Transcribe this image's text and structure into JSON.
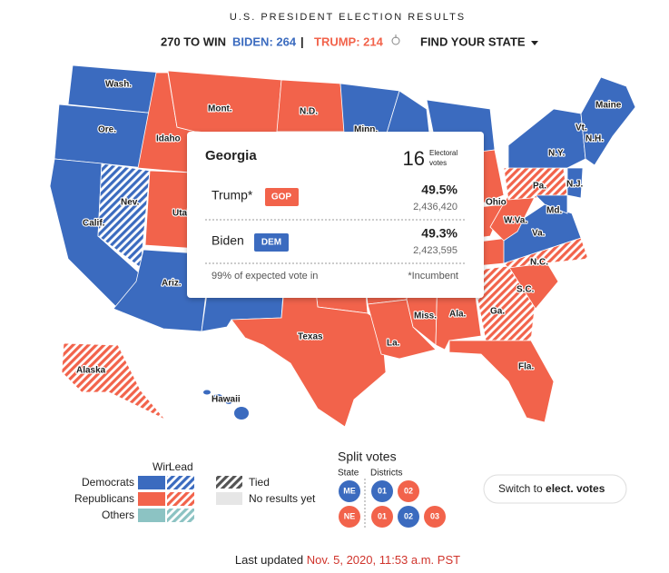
{
  "header": {
    "title": "U.S. PRESIDENT ELECTION RESULTS",
    "to_win": "270 TO WIN",
    "biden": "BIDEN: 264",
    "separator": "|",
    "trump": "TRUMP: 214",
    "find_state": "FIND YOUR STATE"
  },
  "map_labels": [
    "Wash.",
    "Ore.",
    "Calif.",
    "Nev.",
    "Idaho",
    "Mont.",
    "Utah",
    "Ariz.",
    "N.D.",
    "Minn.",
    "Texas",
    "La.",
    "Miss.",
    "Ala.",
    "Ga.",
    "Fla.",
    "S.C.",
    "N.C.",
    "Va.",
    "W.Va.",
    "Md.",
    "Pa.",
    "N.J.",
    "N.Y.",
    "Vt.",
    "N.H.",
    "Maine",
    "Ohio",
    "Alaska",
    "Hawaii"
  ],
  "tooltip": {
    "state": "Georgia",
    "electoral_votes": "16",
    "electoral_caption": [
      "Electoral",
      "votes"
    ],
    "rows": [
      {
        "name": "Trump*",
        "party": "GOP",
        "percent": "49.5%",
        "votes": "2,436,420"
      },
      {
        "name": "Biden",
        "party": "DEM",
        "percent": "49.3%",
        "votes": "2,423,595"
      }
    ],
    "expected": "99% of expected vote in",
    "incumbent_note": "*Incumbent"
  },
  "legend": {
    "win": "Win",
    "lead": "Lead",
    "democrats": "Democrats",
    "republicans": "Republicans",
    "others": "Others",
    "tied": "Tied",
    "no_results": "No results yet"
  },
  "split_votes": {
    "title": "Split votes",
    "state_header": "State",
    "districts_header": "Districts",
    "rows": [
      {
        "state": "ME",
        "districts": [
          "01",
          "02"
        ]
      },
      {
        "state": "NE",
        "districts": [
          "01",
          "02",
          "03"
        ]
      }
    ]
  },
  "switch": {
    "prefix": "Switch to",
    "bold": "elect. votes"
  },
  "footer": {
    "prefix": "Last updated",
    "date": "Nov. 5, 2020, 11:53 a.m. PST"
  }
}
